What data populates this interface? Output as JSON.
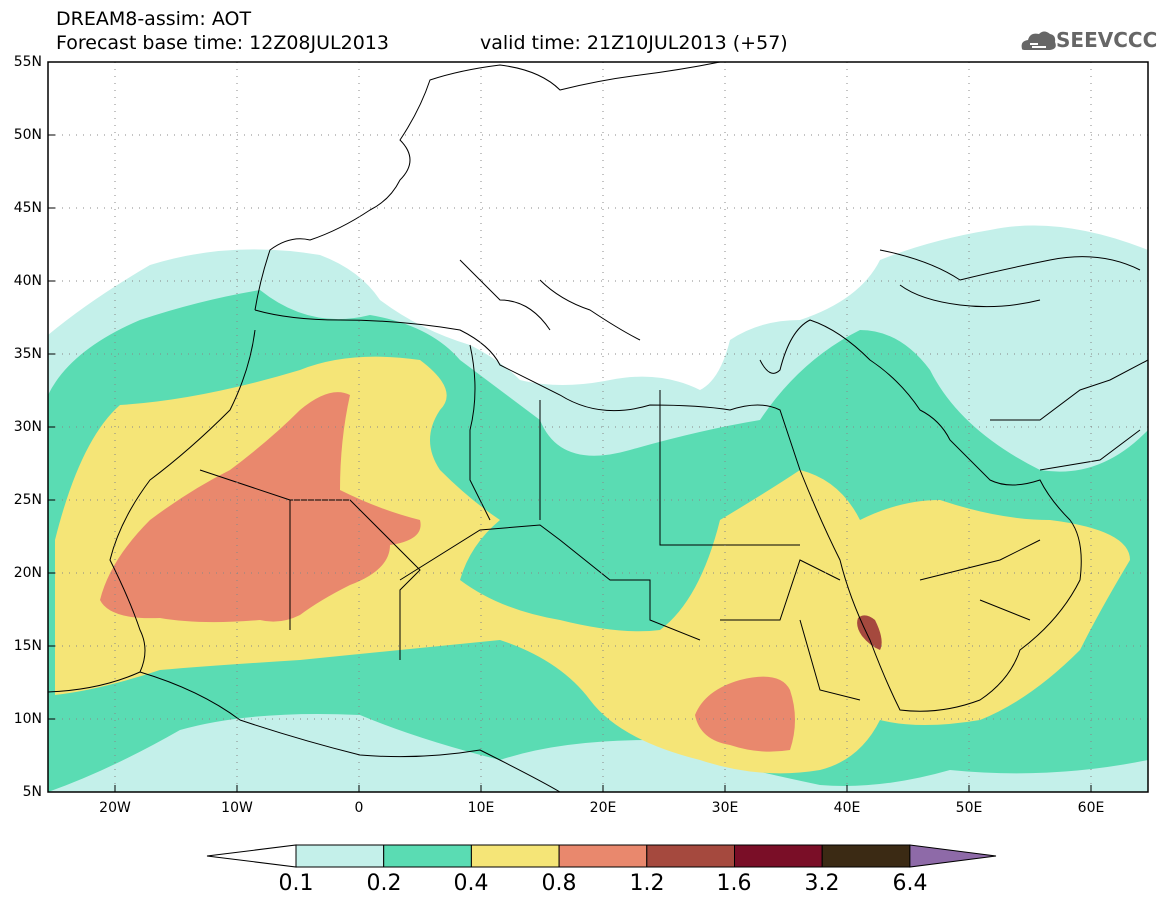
{
  "header": {
    "title": "DREAM8-assim: AOT",
    "base_time": "Forecast base time: 12Z08JUL2013",
    "valid_time": "valid time: 21Z10JUL2013 (+57)"
  },
  "logo": {
    "text": "SEEVCCC",
    "icon": "cloud-icon"
  },
  "map": {
    "lat_labels": [
      "55N",
      "50N",
      "45N",
      "40N",
      "35N",
      "30N",
      "25N",
      "20N",
      "15N",
      "10N",
      "5N"
    ],
    "lon_labels": [
      "20W",
      "10W",
      "0",
      "10E",
      "20E",
      "30E",
      "40E",
      "50E",
      "60E"
    ],
    "background": "#ffffff",
    "coastline_color": "#000000",
    "grid": "dotted"
  },
  "colorbar": {
    "labels": [
      "0.1",
      "0.2",
      "0.4",
      "0.8",
      "1.2",
      "1.6",
      "3.2",
      "6.4"
    ],
    "colors": [
      "#ffffff",
      "#c4f0ea",
      "#5adcb3",
      "#f5e577",
      "#e9886d",
      "#a5493e",
      "#7a0e27",
      "#3b2a14",
      "#8e6aa8"
    ]
  }
}
